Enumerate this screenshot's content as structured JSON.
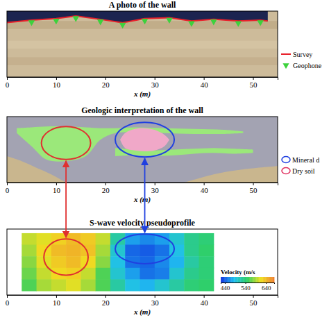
{
  "chart_data": [
    {
      "type": "photo",
      "title": "A photo of the wall",
      "xlabel": "x (m)",
      "xlim": [
        0,
        55
      ],
      "xticks": [
        0,
        10,
        20,
        30,
        40,
        50
      ],
      "ylim": [
        0,
        4
      ],
      "tick_labels": "x",
      "series": [
        {
          "name": "Survey",
          "type": "line",
          "color": "#e8202a",
          "x": [
            0,
            5,
            10,
            14,
            19,
            23.5,
            28,
            33,
            37.5,
            42,
            47,
            51.5,
            53
          ],
          "values": [
            3.3,
            3.45,
            3.55,
            3.7,
            3.5,
            3.3,
            3.55,
            3.6,
            3.4,
            3.5,
            3.4,
            3.45,
            3.4
          ]
        },
        {
          "name": "Geophone",
          "type": "scatter",
          "marker": "triangle-down",
          "color": "#3cd23c",
          "x": [
            5,
            10,
            14,
            19,
            23.5,
            28,
            33,
            37.5,
            42,
            47,
            51.5
          ],
          "values": [
            3.45,
            3.55,
            3.7,
            3.5,
            3.3,
            3.55,
            3.6,
            3.4,
            3.5,
            3.4,
            3.45
          ]
        }
      ]
    },
    {
      "type": "geology",
      "title": "Geologic interpretation of the wall",
      "xlabel": "x (m)",
      "xlim": [
        0,
        55
      ],
      "xticks": [
        0,
        10,
        20,
        30,
        40,
        50
      ],
      "ylim": [
        0,
        4
      ],
      "tick_labels": "x",
      "units": [
        {
          "color": "#c9b68e",
          "x": [
            0,
            3,
            6,
            9,
            12
          ],
          "y_top": [
            1.6,
            1.3,
            0.9,
            0.5,
            0
          ],
          "y_bottom": [
            0,
            0,
            0,
            0,
            0
          ]
        },
        {
          "color": "#c9b68e",
          "x": [
            36,
            42,
            48,
            55
          ],
          "y_top": [
            0,
            0.5,
            0.8,
            1.0
          ],
          "y_bottom": [
            0,
            0,
            0,
            0
          ]
        },
        {
          "color": "#9be87a",
          "x": [
            2,
            5,
            8,
            12,
            16,
            19,
            22,
            26,
            32,
            38,
            44,
            48
          ],
          "y_top": [
            3.3,
            3.35,
            3.4,
            3.4,
            3.35,
            3.3,
            3.3,
            3.35,
            3.3,
            3.25,
            3.2,
            3.1
          ],
          "y_bottom": [
            3.0,
            2.2,
            1.4,
            1.3,
            1.6,
            2.6,
            3.0,
            3.05,
            3.0,
            2.95,
            2.95,
            3.0
          ]
        },
        {
          "color": "#9be87a",
          "x": [
            22,
            26,
            30,
            34,
            38,
            42,
            46,
            50
          ],
          "y_top": [
            2.1,
            2.0,
            1.95,
            2.0,
            2.05,
            2.1,
            2.05,
            2.0
          ],
          "y_bottom": [
            1.6,
            1.65,
            1.6,
            1.65,
            1.75,
            1.8,
            1.75,
            1.8
          ]
        },
        {
          "color": "#f0a8c8",
          "x": [
            23,
            24,
            26,
            28,
            30,
            32,
            33
          ],
          "y_top": [
            2.6,
            3.0,
            3.25,
            3.3,
            3.2,
            2.9,
            2.6
          ],
          "y_bottom": [
            2.6,
            2.1,
            1.95,
            1.9,
            1.95,
            2.2,
            2.6
          ]
        }
      ],
      "annotations": [
        {
          "color": "#e03030",
          "x": 12,
          "y": 2.4,
          "rx": 5,
          "ry": 1.0
        },
        {
          "color": "#2040e0",
          "x": 28,
          "y": 2.6,
          "rx": 6,
          "ry": 1.05
        }
      ],
      "legend_items": [
        {
          "label": "Mineral d",
          "color": "#2040e0"
        },
        {
          "label": "Dry soil",
          "color": "#e03060"
        }
      ]
    },
    {
      "type": "heatmap",
      "title": "S-wave velocity pseudoprofile",
      "xlabel": "x (m)",
      "xlim": [
        0,
        55
      ],
      "xticks": [
        0,
        10,
        20,
        30,
        40,
        50
      ],
      "ylim": [
        0,
        4
      ],
      "tick_labels": "x",
      "x_edges": [
        3,
        6,
        9,
        12,
        15,
        18,
        21,
        24,
        27,
        30,
        33,
        36,
        39,
        42
      ],
      "y_edges": [
        3.75,
        3.05,
        2.35,
        1.65,
        0.95,
        0.25
      ],
      "z": [
        [
          600,
          610,
          625,
          640,
          630,
          600,
          520,
          470,
          460,
          470,
          500,
          530,
          540
        ],
        [
          590,
          620,
          640,
          645,
          635,
          590,
          500,
          445,
          440,
          450,
          490,
          530,
          545
        ],
        [
          580,
          610,
          630,
          640,
          620,
          580,
          490,
          450,
          445,
          460,
          480,
          520,
          540
        ],
        [
          570,
          600,
          620,
          625,
          600,
          560,
          500,
          470,
          450,
          455,
          500,
          530,
          540
        ],
        [
          560,
          590,
          600,
          610,
          590,
          560,
          520,
          490,
          480,
          500,
          520,
          540,
          545
        ]
      ],
      "colors": [
        "#1030e0",
        "#20c0f0",
        "#30d060",
        "#f0e020",
        "#f08030"
      ],
      "colorbar": {
        "title": "Velocity (m/s",
        "range": [
          420,
          680
        ],
        "ticks": [
          440,
          540,
          640
        ]
      },
      "annotations": [
        {
          "color": "#e03030",
          "x": 12,
          "y": 2.3,
          "rx": 4.5,
          "ry": 1.1
        },
        {
          "color": "#2040e0",
          "x": 28,
          "y": 2.8,
          "rx": 6,
          "ry": 0.9
        }
      ]
    }
  ]
}
